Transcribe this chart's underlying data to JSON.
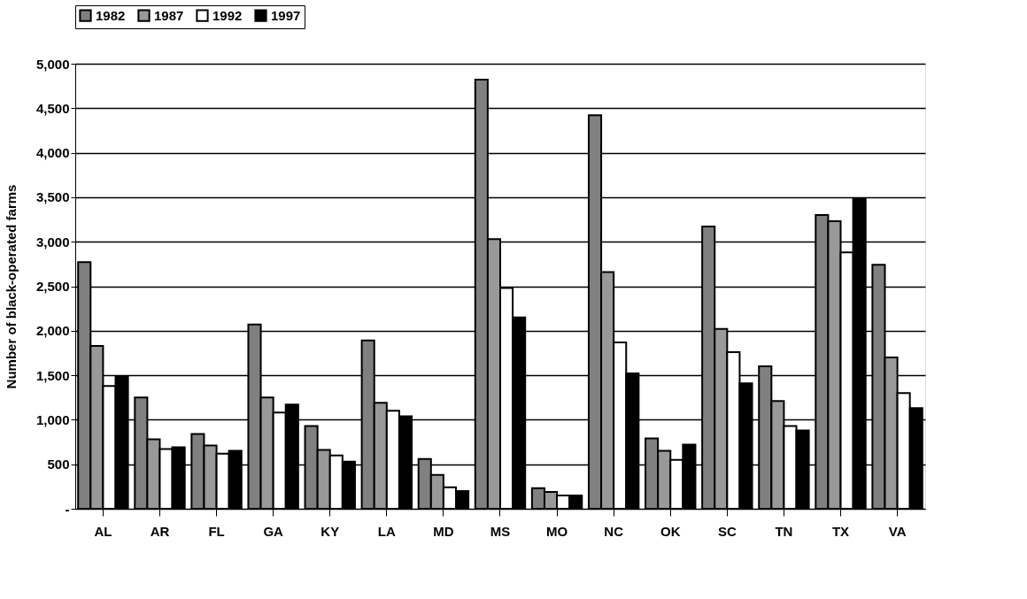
{
  "chart_data": {
    "type": "bar",
    "ylabel": "Number of black-operated farms",
    "categories": [
      "AL",
      "AR",
      "FL",
      "GA",
      "KY",
      "LA",
      "MD",
      "MS",
      "MO",
      "NC",
      "OK",
      "SC",
      "TN",
      "TX",
      "VA"
    ],
    "series": [
      {
        "name": "1982",
        "color": "#808080",
        "values": [
          2770,
          1250,
          840,
          2070,
          930,
          1890,
          560,
          4820,
          230,
          4420,
          790,
          3170,
          1600,
          3300,
          2740
        ]
      },
      {
        "name": "1987",
        "color": "#999999",
        "values": [
          1830,
          780,
          710,
          1250,
          660,
          1190,
          380,
          3030,
          190,
          2660,
          650,
          2020,
          1210,
          3230,
          1700
        ]
      },
      {
        "name": "1992",
        "color": "#ffffff",
        "values": [
          1380,
          670,
          620,
          1080,
          600,
          1100,
          240,
          2480,
          150,
          1870,
          550,
          1760,
          930,
          2880,
          1300
        ]
      },
      {
        "name": "1997",
        "color": "#000000",
        "values": [
          1480,
          690,
          650,
          1170,
          530,
          1040,
          200,
          2150,
          150,
          1520,
          720,
          1410,
          880,
          3490,
          1130
        ]
      }
    ],
    "ylim": [
      0,
      5000
    ],
    "yticks": [
      {
        "value": 0,
        "label": "-"
      },
      {
        "value": 500,
        "label": "500"
      },
      {
        "value": 1000,
        "label": "1,000"
      },
      {
        "value": 1500,
        "label": "1,500"
      },
      {
        "value": 2000,
        "label": "2,000"
      },
      {
        "value": 2500,
        "label": "2,500"
      },
      {
        "value": 3000,
        "label": "3,000"
      },
      {
        "value": 3500,
        "label": "3,500"
      },
      {
        "value": 4000,
        "label": "4,000"
      },
      {
        "value": 4500,
        "label": "4,500"
      },
      {
        "value": 5000,
        "label": "5,000"
      }
    ],
    "grid": "y",
    "legend": "top"
  }
}
